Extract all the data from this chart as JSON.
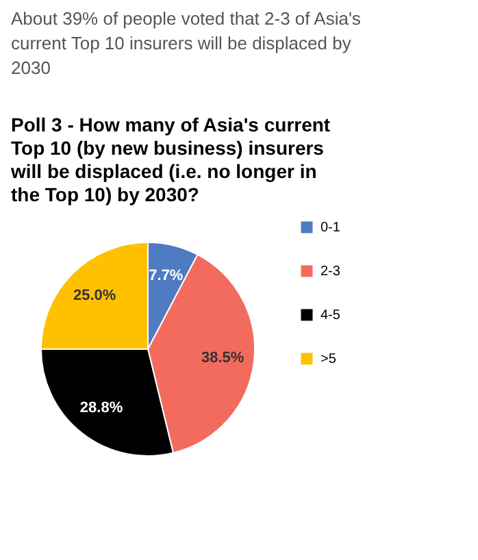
{
  "chart_data": {
    "type": "pie",
    "subtitle": "About 39% of people voted that 2-3 of Asia's current Top 10 insurers will be displaced by 2030",
    "title": "Poll 3 - How many of Asia's current Top 10 (by new business) insurers will be displaced (i.e. no longer in the Top 10) by 2030?",
    "categories": [
      "0-1",
      "2-3",
      "4-5",
      ">5"
    ],
    "values": [
      7.7,
      38.5,
      28.8,
      25.0
    ],
    "colors": [
      "#4f7bc0",
      "#f26b5e",
      "#000000",
      "#ffc000"
    ],
    "value_labels": [
      "7.7%",
      "38.5%",
      "28.8%",
      "25.0%"
    ],
    "legend": "right"
  }
}
